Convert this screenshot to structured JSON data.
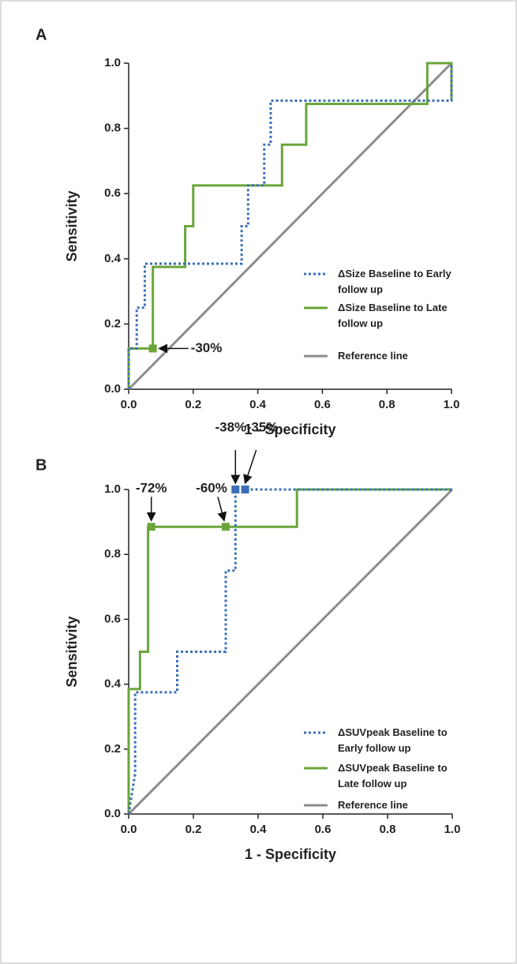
{
  "chart_data": [
    {
      "type": "line",
      "panel_label": "A",
      "xlabel": "1 - Specificity",
      "ylabel": "Sensitivity",
      "xlim": [
        0,
        1
      ],
      "ylim": [
        0,
        1
      ],
      "xticks": [
        {
          "value": 0,
          "label": "0.0"
        },
        {
          "value": 0.2,
          "label": "0.2"
        },
        {
          "value": 0.4,
          "label": "0.4"
        },
        {
          "value": 0.6,
          "label": "0.6"
        },
        {
          "value": 0.8,
          "label": "0.8"
        },
        {
          "value": 1,
          "label": "1.0"
        }
      ],
      "yticks": [
        {
          "value": 0,
          "label": "0.0"
        },
        {
          "value": 0.2,
          "label": "0.2"
        },
        {
          "value": 0.4,
          "label": "0.4"
        },
        {
          "value": 0.6,
          "label": "0.6"
        },
        {
          "value": 0.8,
          "label": "0.8"
        },
        {
          "value": 1,
          "label": "1.0"
        }
      ],
      "series": [
        {
          "name": "ΔSize Baseline to Early follow up",
          "color": "#3a6fb5",
          "dashed": true,
          "x": [
            0,
            0,
            0.025,
            0.025,
            0.05,
            0.05,
            0.35,
            0.35,
            0.37,
            0.37,
            0.42,
            0.42,
            0.44,
            0.44,
            1,
            1
          ],
          "values": [
            0,
            0.125,
            0.125,
            0.25,
            0.25,
            0.385,
            0.385,
            0.5,
            0.5,
            0.625,
            0.625,
            0.75,
            0.75,
            0.885,
            0.885,
            1
          ]
        },
        {
          "name": "ΔSize Baseline to Late follow up",
          "color": "#6aa53a",
          "dashed": false,
          "x": [
            0,
            0,
            0.075,
            0.075,
            0.175,
            0.175,
            0.2,
            0.2,
            0.475,
            0.475,
            0.55,
            0.55,
            0.925,
            0.925,
            1,
            1
          ],
          "values": [
            0,
            0.125,
            0.125,
            0.375,
            0.375,
            0.5,
            0.5,
            0.625,
            0.625,
            0.75,
            0.75,
            0.875,
            0.875,
            1,
            1,
            0.885
          ]
        },
        {
          "name": "Reference line",
          "color": "#8c8c8c",
          "dashed": false,
          "x": [
            0,
            1
          ],
          "values": [
            0,
            1
          ]
        }
      ],
      "markers": [
        {
          "label": "-30%",
          "x": 0.075,
          "y": 0.125,
          "color": "#6aa53a"
        }
      ]
    },
    {
      "type": "line",
      "panel_label": "B",
      "xlabel": "1 - Specificity",
      "ylabel": "Sensitivity",
      "xlim": [
        0,
        1
      ],
      "ylim": [
        0,
        1
      ],
      "xticks": [
        {
          "value": 0,
          "label": "0.0"
        },
        {
          "value": 0.2,
          "label": "0.2"
        },
        {
          "value": 0.4,
          "label": "0.4"
        },
        {
          "value": 0.6,
          "label": "0.6"
        },
        {
          "value": 0.8,
          "label": "0.8"
        },
        {
          "value": 1,
          "label": "1.0"
        }
      ],
      "yticks": [
        {
          "value": 0,
          "label": "0.0"
        },
        {
          "value": 0.2,
          "label": "0.2"
        },
        {
          "value": 0.4,
          "label": "0.4"
        },
        {
          "value": 0.6,
          "label": "0.6"
        },
        {
          "value": 0.8,
          "label": "0.8"
        },
        {
          "value": 1,
          "label": "1.0"
        }
      ],
      "series": [
        {
          "name": "ΔSUVpeak Baseline to Early follow up",
          "color": "#3a6fb5",
          "dashed": true,
          "x": [
            0,
            0.02,
            0.02,
            0.15,
            0.15,
            0.3,
            0.3,
            0.33,
            0.33,
            1
          ],
          "values": [
            0,
            0.125,
            0.375,
            0.375,
            0.5,
            0.5,
            0.75,
            0.75,
            1,
            1
          ]
        },
        {
          "name": "ΔSUVpeak Baseline to Late follow up",
          "color": "#6aa53a",
          "dashed": false,
          "x": [
            0,
            0,
            0.035,
            0.035,
            0.06,
            0.06,
            0.52,
            0.52,
            1
          ],
          "values": [
            0,
            0.385,
            0.385,
            0.5,
            0.5,
            0.885,
            0.885,
            1,
            1
          ]
        },
        {
          "name": "Reference line",
          "color": "#8c8c8c",
          "dashed": false,
          "x": [
            0,
            1
          ],
          "values": [
            0,
            1
          ]
        }
      ],
      "markers": [
        {
          "label": "-72%",
          "x": 0.07,
          "y": 0.885,
          "color": "#6aa53a"
        },
        {
          "label": "-60%",
          "x": 0.3,
          "y": 0.885,
          "color": "#6aa53a"
        },
        {
          "label": "-38%",
          "x": 0.33,
          "y": 1,
          "color": "#3a6fb5"
        },
        {
          "label": "-35%",
          "x": 0.36,
          "y": 1,
          "color": "#3a6fb5"
        }
      ]
    }
  ]
}
